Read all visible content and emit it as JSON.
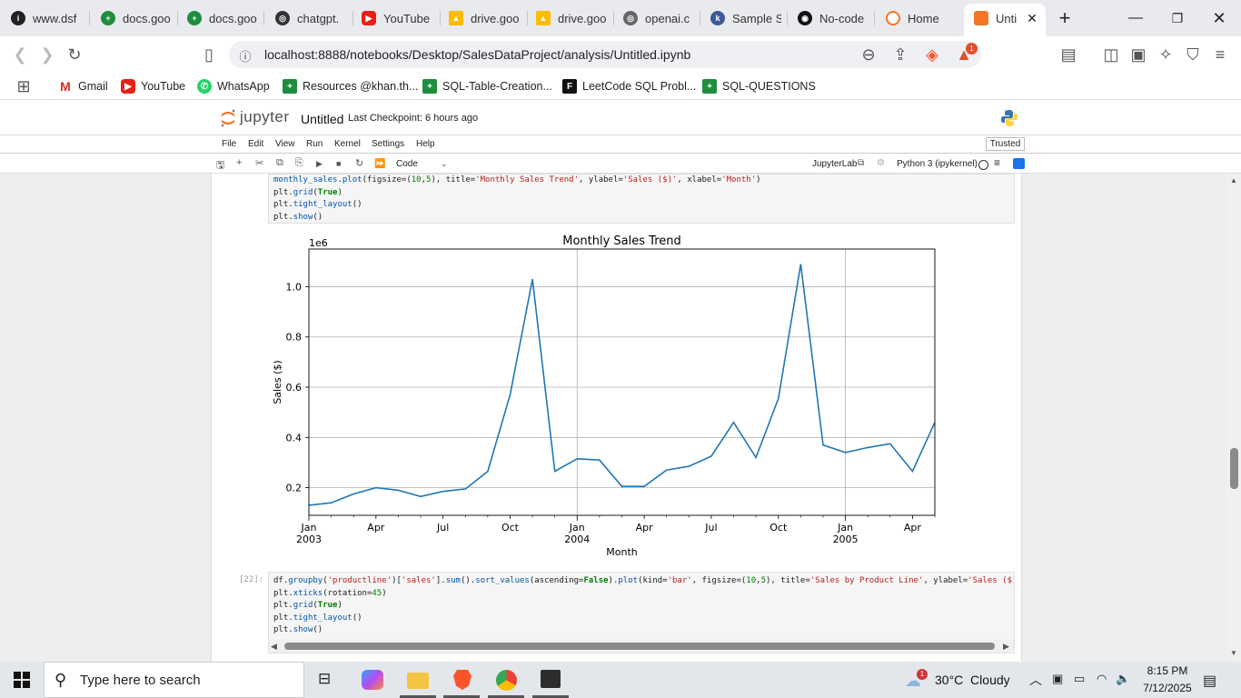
{
  "browser": {
    "tabs": [
      {
        "label": "www.dsf"
      },
      {
        "label": "docs.goo"
      },
      {
        "label": "docs.goo"
      },
      {
        "label": "chatgpt."
      },
      {
        "label": "YouTube"
      },
      {
        "label": "drive.goo"
      },
      {
        "label": "drive.goo"
      },
      {
        "label": "openai.c"
      },
      {
        "label": "Sample S"
      },
      {
        "label": "No-code"
      },
      {
        "label": "Home"
      },
      {
        "label": "Unti"
      }
    ],
    "url": "localhost:8888/notebooks/Desktop/SalesDataProject/analysis/Untitled.ipynb",
    "shield_badge": "1",
    "bookmarks": [
      {
        "label": "Gmail"
      },
      {
        "label": "YouTube"
      },
      {
        "label": "WhatsApp"
      },
      {
        "label": "Resources @khan.th..."
      },
      {
        "label": "SQL-Table-Creation..."
      },
      {
        "label": "LeetCode SQL Probl..."
      },
      {
        "label": "SQL-QUESTIONS"
      }
    ]
  },
  "jupyter": {
    "logo_text": "jupyter",
    "notebook_name": "Untitled",
    "checkpoint": "Last Checkpoint: 6 hours ago",
    "trusted": "Trusted",
    "menus": [
      "File",
      "Edit",
      "View",
      "Run",
      "Kernel",
      "Settings",
      "Help"
    ],
    "cell_type": "Code",
    "jupyterlab_link": "JupyterLab",
    "kernel": "Python 3 (ipykernel)"
  },
  "cells": {
    "cell1": {
      "lines": [
        "monthly_sales.plot(figsize=(10,5), title='Monthly Sales Trend', ylabel='Sales ($)', xlabel='Month')",
        "plt.grid(True)",
        "plt.tight_layout()",
        "plt.show()"
      ]
    },
    "cell2": {
      "prompt": "[22]:",
      "lines": [
        "df.groupby('productline')['sales'].sum().sort_values(ascending=False).plot(kind='bar', figsize=(10,5), title='Sales by Product Line', ylabel='Sales ($)'",
        "plt.xticks(rotation=45)",
        "plt.grid(True)",
        "plt.tight_layout()",
        "plt.show()"
      ]
    }
  },
  "chart_data": {
    "type": "line",
    "title": "Monthly Sales Trend",
    "xlabel": "Month",
    "ylabel": "Sales ($)",
    "y_scale_label": "1e6",
    "ylim": [
      0.09,
      1.15
    ],
    "yticks": [
      "0.2",
      "0.4",
      "0.6",
      "0.8",
      "1.0"
    ],
    "x": [
      "2003-01",
      "2003-02",
      "2003-03",
      "2003-04",
      "2003-05",
      "2003-06",
      "2003-07",
      "2003-08",
      "2003-09",
      "2003-10",
      "2003-11",
      "2003-12",
      "2004-01",
      "2004-02",
      "2004-03",
      "2004-04",
      "2004-05",
      "2004-06",
      "2004-07",
      "2004-08",
      "2004-09",
      "2004-10",
      "2004-11",
      "2004-12",
      "2005-01",
      "2005-02",
      "2005-03",
      "2005-04",
      "2005-05"
    ],
    "xticks": [
      {
        "month": "Jan",
        "year": "2003"
      },
      {
        "month": "Apr",
        "year": ""
      },
      {
        "month": "Jul",
        "year": ""
      },
      {
        "month": "Oct",
        "year": ""
      },
      {
        "month": "Jan",
        "year": "2004"
      },
      {
        "month": "Apr",
        "year": ""
      },
      {
        "month": "Jul",
        "year": ""
      },
      {
        "month": "Oct",
        "year": ""
      },
      {
        "month": "Jan",
        "year": "2005"
      },
      {
        "month": "Apr",
        "year": ""
      }
    ],
    "grid": true,
    "series": [
      {
        "values": [
          0.13,
          0.14,
          0.175,
          0.2,
          0.19,
          0.165,
          0.185,
          0.195,
          0.265,
          0.57,
          1.03,
          0.265,
          0.315,
          0.31,
          0.205,
          0.205,
          0.27,
          0.285,
          0.325,
          0.46,
          0.32,
          0.555,
          1.09,
          0.37,
          0.34,
          0.36,
          0.375,
          0.265,
          0.46
        ],
        "color": "#1f77b4"
      }
    ]
  },
  "taskbar": {
    "search_placeholder": "Type here to search",
    "weather": "30°C  Cloudy",
    "weather_badge": "1",
    "time": "8:15 PM",
    "date": "7/12/2025"
  }
}
